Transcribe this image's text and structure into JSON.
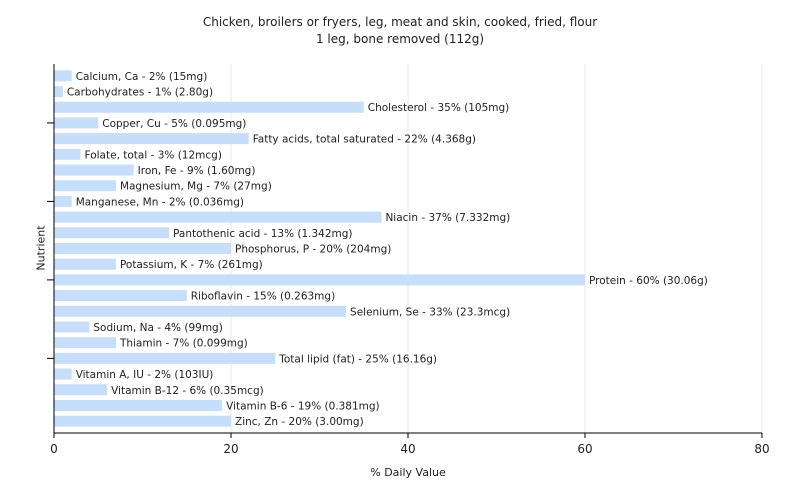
{
  "chart_data": {
    "type": "bar",
    "orientation": "horizontal",
    "title": "Chicken, broilers or fryers, leg, meat and skin, cooked, fried, flour",
    "subtitle": "1 leg, bone removed (112g)",
    "xlabel": "% Daily Value",
    "ylabel": "Nutrient",
    "xlim": [
      0,
      80
    ],
    "xticks": [
      0,
      20,
      40,
      60,
      80
    ],
    "grid": true,
    "bar_color": "#c6defa",
    "categories": [
      "Calcium, Ca",
      "Carbohydrates",
      "Cholesterol",
      "Copper, Cu",
      "Fatty acids, total saturated",
      "Folate, total",
      "Iron, Fe",
      "Magnesium, Mg",
      "Manganese, Mn",
      "Niacin",
      "Pantothenic acid",
      "Phosphorus, P",
      "Potassium, K",
      "Protein",
      "Riboflavin",
      "Selenium, Se",
      "Sodium, Na",
      "Thiamin",
      "Total lipid (fat)",
      "Vitamin A, IU",
      "Vitamin B-12",
      "Vitamin B-6",
      "Zinc, Zn"
    ],
    "values": [
      2,
      1,
      35,
      5,
      22,
      3,
      9,
      7,
      2,
      37,
      13,
      20,
      7,
      60,
      15,
      33,
      4,
      7,
      25,
      2,
      6,
      19,
      20
    ],
    "bar_labels": [
      "Calcium, Ca - 2% (15mg)",
      "Carbohydrates - 1% (2.80g)",
      "Cholesterol - 35% (105mg)",
      "Copper, Cu - 5% (0.095mg)",
      "Fatty acids, total saturated - 22% (4.368g)",
      "Folate, total - 3% (12mcg)",
      "Iron, Fe - 9% (1.60mg)",
      "Magnesium, Mg - 7% (27mg)",
      "Manganese, Mn - 2% (0.036mg)",
      "Niacin - 37% (7.332mg)",
      "Pantothenic acid - 13% (1.342mg)",
      "Phosphorus, P - 20% (204mg)",
      "Potassium, K - 7% (261mg)",
      "Protein - 60% (30.06g)",
      "Riboflavin - 15% (0.263mg)",
      "Selenium, Se - 33% (23.3mcg)",
      "Sodium, Na - 4% (99mg)",
      "Thiamin - 7% (0.099mg)",
      "Total lipid (fat) - 25% (16.16g)",
      "Vitamin A, IU - 2% (103IU)",
      "Vitamin B-12 - 6% (0.35mcg)",
      "Vitamin B-6 - 19% (0.381mg)",
      "Zinc, Zn - 20% (3.00mg)"
    ]
  }
}
